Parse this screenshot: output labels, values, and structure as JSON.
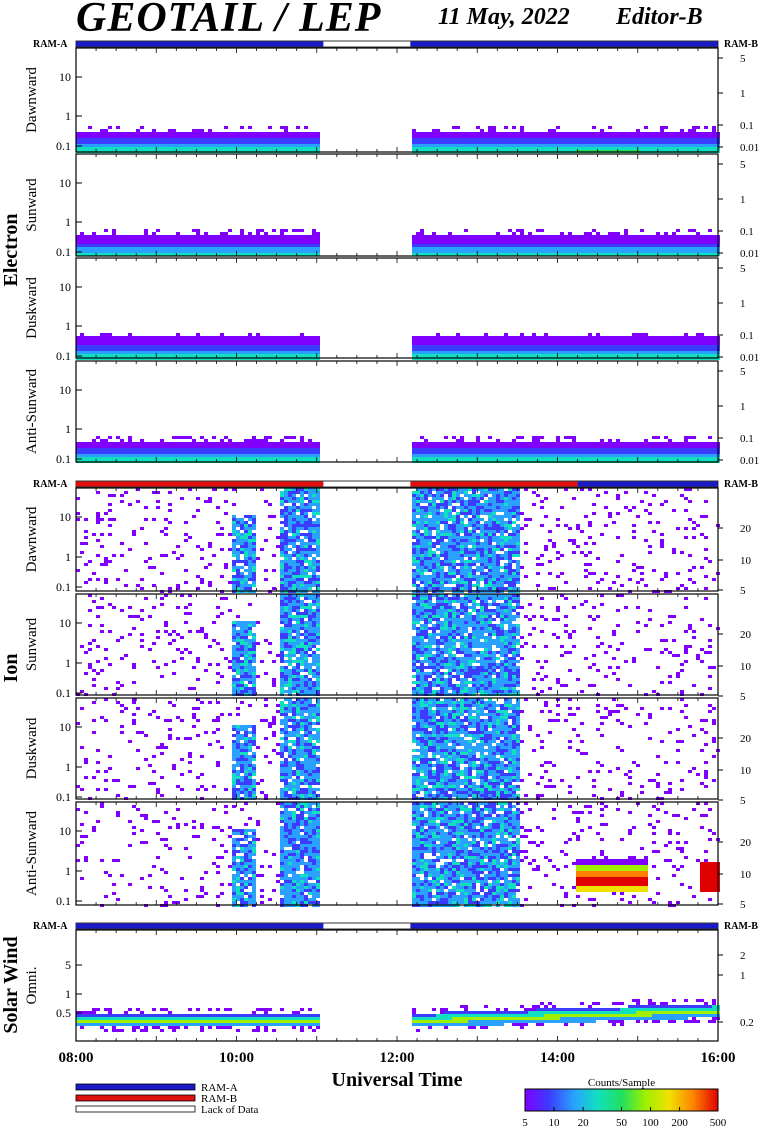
{
  "header": {
    "title": "GEOTAIL / LEP",
    "date": "11 May, 2022",
    "editor": "Editor-B"
  },
  "colors": {
    "ram_a": "#1a1ac8",
    "ram_b": "#e01010",
    "lack_of_data": "#ffffff",
    "scale": [
      "#7f00ff",
      "#3c3cff",
      "#2aa0ff",
      "#10e0c0",
      "#20e060",
      "#a0f000",
      "#f0e000",
      "#ff8000",
      "#e00000"
    ]
  },
  "chart_data": {
    "type": "heatmap",
    "xlabel": "Universal Time",
    "x_ticks": [
      "08:00",
      "10:00",
      "12:00",
      "14:00",
      "16:00"
    ],
    "data_gap": [
      "11:05",
      "12:10"
    ],
    "groups": [
      {
        "name": "Electron",
        "mode_bar_left": "RAM-A",
        "mode_bar_right": "RAM-B",
        "mode_segments": [
          {
            "from": "08:00",
            "to": "11:05",
            "mode": "RAM-A"
          },
          {
            "from": "11:05",
            "to": "12:10",
            "mode": "Lack of Data"
          },
          {
            "from": "12:10",
            "to": "16:00",
            "mode": "RAM-A"
          }
        ],
        "left_axis_ticks": [
          "10",
          "1",
          "0.1"
        ],
        "right_axis_ticks": [
          "5",
          "1",
          "0.1",
          "0.01"
        ],
        "panels": [
          "Dawnward",
          "Sunward",
          "Duskward",
          "Anti-Sunward"
        ]
      },
      {
        "name": "Ion",
        "mode_bar_left": "RAM-A",
        "mode_bar_right": "RAM-B",
        "mode_segments": [
          {
            "from": "08:00",
            "to": "11:05",
            "mode": "RAM-B"
          },
          {
            "from": "11:05",
            "to": "12:10",
            "mode": "Lack of Data"
          },
          {
            "from": "12:10",
            "to": "14:15",
            "mode": "RAM-B"
          },
          {
            "from": "14:15",
            "to": "16:00",
            "mode": "RAM-A"
          }
        ],
        "left_axis_ticks": [
          "10",
          "1",
          "0.1"
        ],
        "right_axis_ticks": [
          "20",
          "10",
          "5"
        ],
        "panels": [
          "Dawnward",
          "Sunward",
          "Duskward",
          "Anti-Sunward"
        ]
      },
      {
        "name": "Solar Wind",
        "mode_bar_left": "RAM-A",
        "mode_bar_right": "RAM-B",
        "mode_segments": [
          {
            "from": "08:00",
            "to": "11:05",
            "mode": "RAM-A"
          },
          {
            "from": "11:05",
            "to": "12:10",
            "mode": "Lack of Data"
          },
          {
            "from": "12:10",
            "to": "16:00",
            "mode": "RAM-A"
          }
        ],
        "left_axis_ticks": [
          "5",
          "1",
          "0.5"
        ],
        "right_axis_ticks": [
          "2",
          "1",
          "0.2"
        ],
        "panels": [
          "Omni."
        ]
      }
    ]
  },
  "legend": {
    "items": [
      "RAM-A",
      "RAM-B",
      "Lack of Data"
    ],
    "colorbar_title": "Counts/Sample",
    "colorbar_ticks": [
      "5",
      "10",
      "20",
      "50",
      "100",
      "200",
      "500"
    ]
  }
}
